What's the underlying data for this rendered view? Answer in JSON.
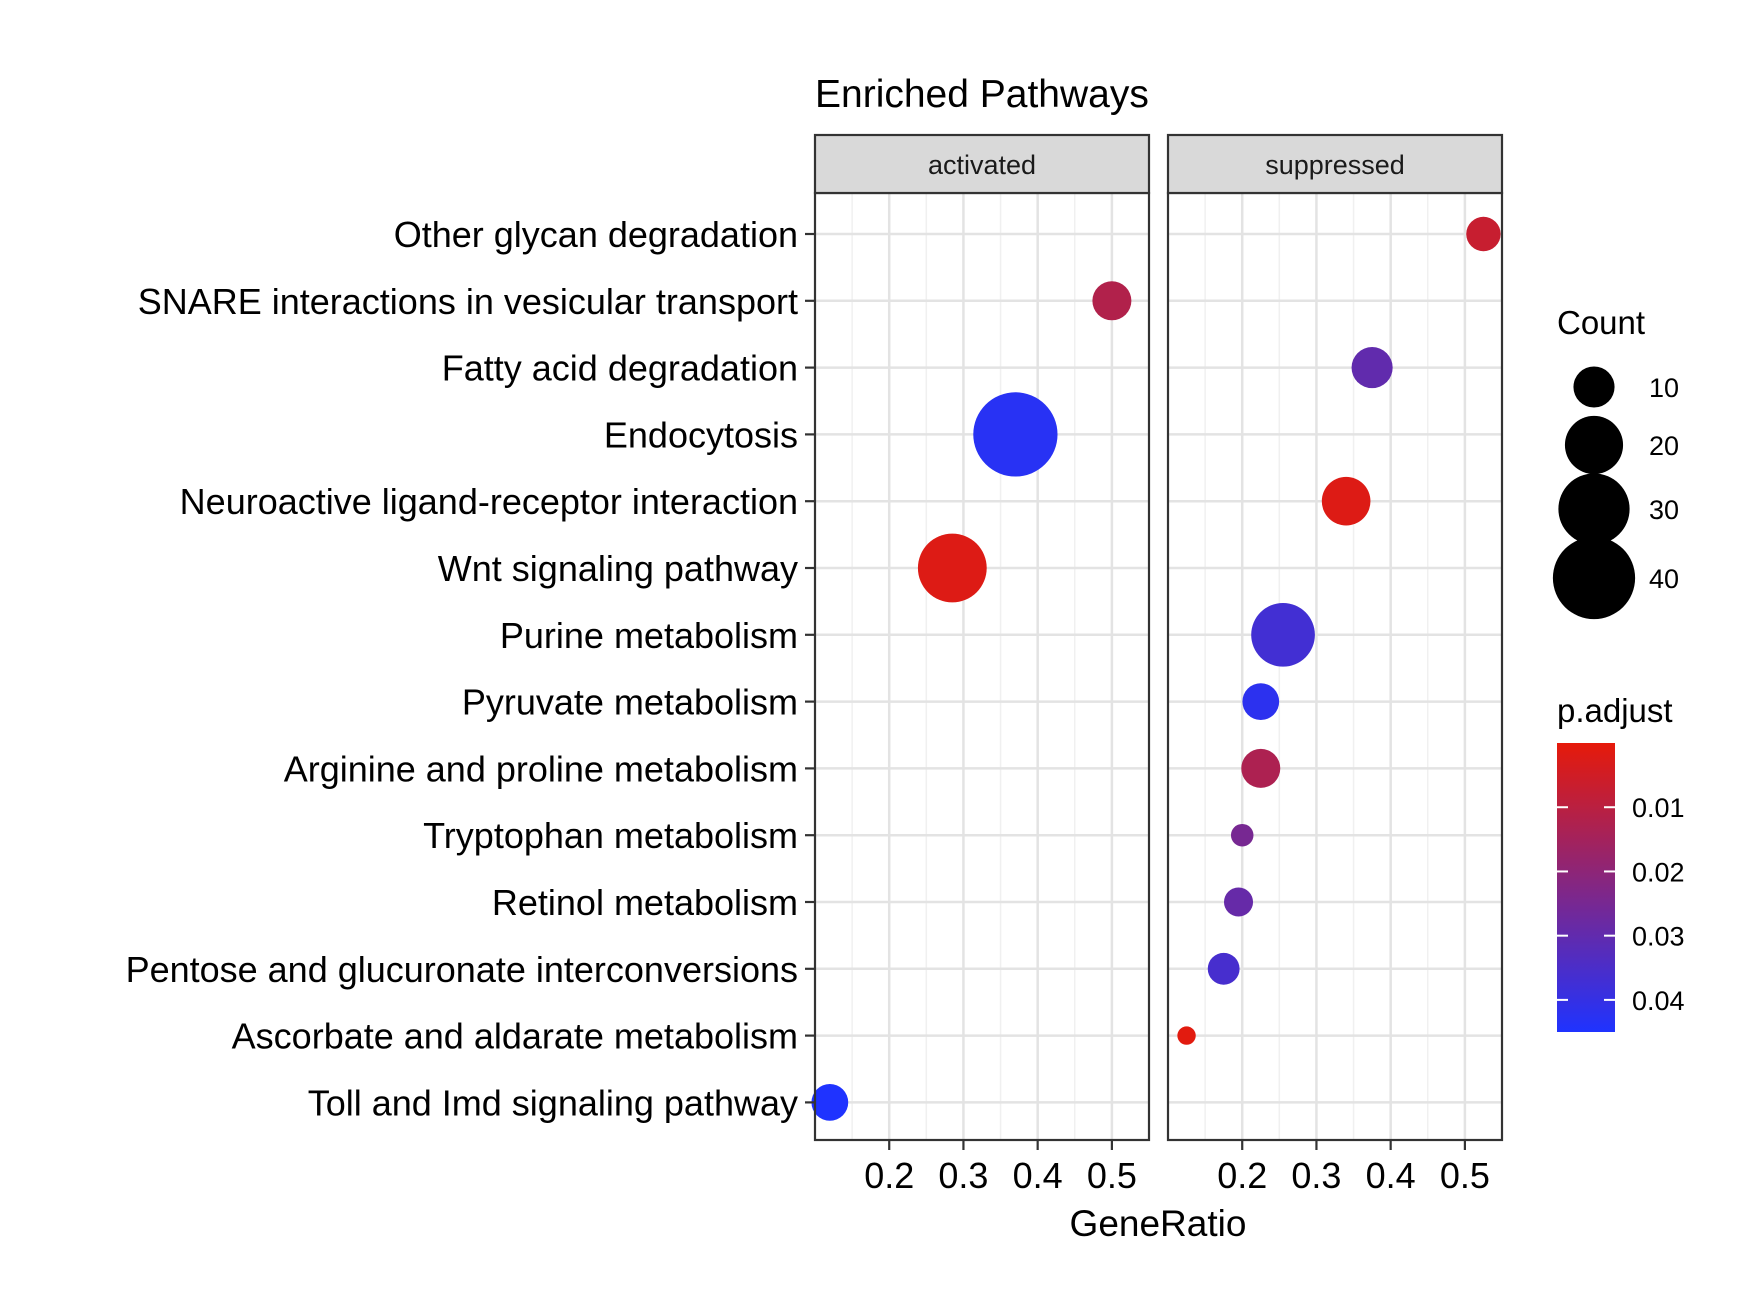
{
  "chart_data": {
    "type": "scatter",
    "title": "Enriched Pathways",
    "xlabel": "GeneRatio",
    "ylabel": "",
    "xlim": [
      0.1,
      0.55
    ],
    "x_ticks": [
      0.2,
      0.3,
      0.4,
      0.5
    ],
    "x_tick_labels": [
      "0.2",
      "0.3",
      "0.4",
      "0.5"
    ],
    "grid": true,
    "legend_position": "right",
    "categories": [
      "Other glycan degradation",
      "SNARE interactions in vesicular transport",
      "Fatty acid degradation",
      "Endocytosis",
      "Neuroactive ligand-receptor interaction",
      "Wnt signaling pathway",
      "Purine metabolism",
      "Pyruvate metabolism",
      "Arginine and proline metabolism",
      "Tryptophan metabolism",
      "Retinol metabolism",
      "Pentose and glucuronate interconversions",
      "Ascorbate and aldarate metabolism",
      "Toll and Imd signaling pathway"
    ],
    "panels": [
      {
        "name": "activated",
        "points": [
          {
            "category": "SNARE interactions in vesicular transport",
            "x": 0.5,
            "count": 9,
            "p_adjust": 0.012
          },
          {
            "category": "Endocytosis",
            "x": 0.37,
            "count": 42,
            "p_adjust": 0.043
          },
          {
            "category": "Wnt signaling pathway",
            "x": 0.285,
            "count": 28,
            "p_adjust": 0.002
          },
          {
            "category": "Toll and Imd signaling pathway",
            "x": 0.12,
            "count": 8,
            "p_adjust": 0.045
          }
        ]
      },
      {
        "name": "suppressed",
        "points": [
          {
            "category": "Other glycan degradation",
            "x": 0.525,
            "count": 7,
            "p_adjust": 0.007
          },
          {
            "category": "Fatty acid degradation",
            "x": 0.375,
            "count": 10,
            "p_adjust": 0.03
          },
          {
            "category": "Neuroactive ligand-receptor interaction",
            "x": 0.34,
            "count": 14,
            "p_adjust": 0.002
          },
          {
            "category": "Purine metabolism",
            "x": 0.255,
            "count": 24,
            "p_adjust": 0.037
          },
          {
            "category": "Pyruvate metabolism",
            "x": 0.225,
            "count": 8,
            "p_adjust": 0.042
          },
          {
            "category": "Arginine and proline metabolism",
            "x": 0.225,
            "count": 9,
            "p_adjust": 0.013
          },
          {
            "category": "Tryptophan metabolism",
            "x": 0.2,
            "count": 3,
            "p_adjust": 0.025
          },
          {
            "category": "Retinol metabolism",
            "x": 0.195,
            "count": 5,
            "p_adjust": 0.029
          },
          {
            "category": "Pentose and glucuronate interconversions",
            "x": 0.175,
            "count": 6,
            "p_adjust": 0.036
          },
          {
            "category": "Ascorbate and aldarate metabolism",
            "x": 0.125,
            "count": 2,
            "p_adjust": 0.001
          }
        ]
      }
    ],
    "size_legend": {
      "title": "Count",
      "values": [
        10,
        20,
        30,
        40
      ],
      "labels": [
        "10",
        "20",
        "30",
        "40"
      ]
    },
    "color_legend": {
      "title": "p.adjust",
      "min": 0.0,
      "max": 0.045,
      "ticks": [
        0.01,
        0.02,
        0.03,
        0.04
      ],
      "labels": [
        "0.01",
        "0.02",
        "0.03",
        "0.04"
      ],
      "low_color": "#e61a0a",
      "high_color": "#1f33ff"
    }
  }
}
